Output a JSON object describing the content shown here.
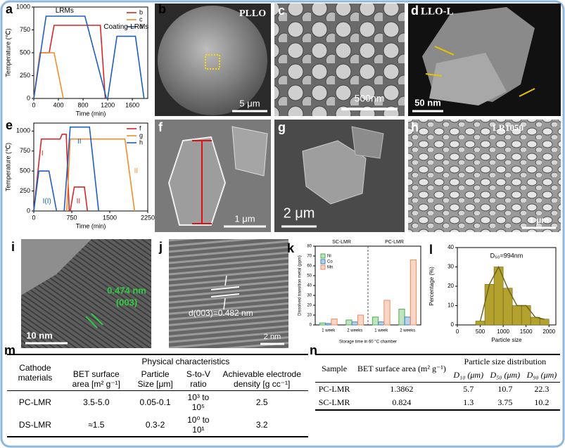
{
  "chart_data": [
    {
      "type": "line",
      "panel": "a",
      "xlabel": "Time (min)",
      "ylabel": "Temperature (℃)",
      "xlim": [
        0,
        1850
      ],
      "ylim": [
        0,
        1000
      ],
      "xticks": [
        0,
        400,
        800,
        1200,
        1600
      ],
      "yticks": [
        0,
        250,
        500,
        750,
        1000
      ],
      "series": [
        {
          "name": "b",
          "color": "#d62728",
          "x": [
            0,
            100,
            250,
            330,
            1080,
            1160
          ],
          "values": [
            0,
            500,
            500,
            800,
            800,
            0
          ]
        },
        {
          "name": "c",
          "color": "#f28e2b",
          "x": [
            0,
            100,
            330,
            480
          ],
          "values": [
            0,
            500,
            500,
            0
          ]
        },
        {
          "name": "d",
          "color": "#1f5fbf",
          "x": [
            0,
            200,
            830,
            1180,
            null,
            1200,
            1350,
            1650,
            1790
          ],
          "values": [
            0,
            900,
            900,
            0,
            null,
            0,
            680,
            680,
            0
          ]
        }
      ],
      "annotations": [
        {
          "text": "LRMs",
          "color": "#000000"
        },
        {
          "text": "Coating-LRMs",
          "color": "#000000"
        }
      ]
    },
    {
      "type": "line",
      "panel": "e",
      "xlabel": "Time (min)",
      "ylabel": "Temperature (℃)",
      "xlim": [
        0,
        2250
      ],
      "ylim": [
        0,
        1100
      ],
      "xticks": [
        0,
        750,
        1500,
        2250
      ],
      "yticks": [
        0,
        250,
        500,
        750,
        1000
      ],
      "series": [
        {
          "name": "f",
          "color": "#d62728",
          "x": [
            0,
            150,
            520,
            560,
            640,
            700,
            null,
            720,
            800,
            1000,
            1060
          ],
          "values": [
            0,
            900,
            900,
            960,
            960,
            0,
            null,
            0,
            300,
            300,
            0
          ]
        },
        {
          "name": "g",
          "color": "#f28e2b",
          "x": [
            650,
            720,
            1800,
            1990
          ],
          "values": [
            0,
            900,
            900,
            0
          ]
        },
        {
          "name": "h",
          "color": "#1f5fbf",
          "x": [
            0,
            100,
            300,
            450,
            null,
            600,
            720,
            1100,
            1280
          ],
          "values": [
            0,
            500,
            500,
            0,
            null,
            0,
            1050,
            1050,
            0
          ]
        }
      ],
      "annotations": [
        {
          "text": "I",
          "color": "#d62728"
        },
        {
          "text": "I(I)",
          "color": "#1f5fbf"
        },
        {
          "text": "II",
          "color": "#1f5fbf"
        },
        {
          "text": "II",
          "color": "#d62728"
        },
        {
          "text": "II",
          "color": "#f28e2b"
        }
      ]
    },
    {
      "type": "grouped-bar",
      "panel": "k",
      "xlabel": "Storage time in 60 °C chamber",
      "ylabel": "Dissolved transition metal (ppm)",
      "groups": [
        "SC-LMR",
        "PC-LMR"
      ],
      "categories": [
        "1 week",
        "2 weeks",
        "1 week",
        "2 weeks"
      ],
      "ylim": [
        0,
        80
      ],
      "yticks": [
        0,
        10,
        20,
        30,
        40,
        50,
        60,
        70,
        80
      ],
      "series": [
        {
          "name": "Ni",
          "color": "#4caf50",
          "values": [
            2,
            5,
            8,
            16
          ]
        },
        {
          "name": "Co",
          "color": "#3b82c4",
          "values": [
            1.5,
            3,
            3,
            8
          ]
        },
        {
          "name": "Mn",
          "color": "#f08a5d",
          "values": [
            6,
            10,
            25,
            66
          ]
        }
      ]
    },
    {
      "type": "histogram",
      "panel": "l",
      "xlabel": "Particle size",
      "ylabel": "Percentage (%)",
      "annotation": "D₅₀=994nm",
      "color": "#b3a22e",
      "bins": [
        400,
        600,
        800,
        1000,
        1200,
        1400,
        1600,
        1800,
        2000
      ],
      "values": [
        2,
        21,
        30,
        19,
        10,
        10,
        4,
        3
      ],
      "xlim": [
        0,
        2150
      ],
      "ylim": [
        0,
        40
      ],
      "xticks": [
        0,
        500,
        1000,
        1500,
        2000
      ],
      "yticks": [
        0,
        10,
        20,
        30,
        40
      ]
    }
  ],
  "images": [
    {
      "panel": "b",
      "labels": [
        "PLLO",
        "5 μm"
      ]
    },
    {
      "panel": "c",
      "labels": [
        "500nm"
      ]
    },
    {
      "panel": "d",
      "labels": [
        "LLO-L",
        "50 nm"
      ]
    },
    {
      "panel": "f",
      "labels": [
        "1 μm"
      ]
    },
    {
      "panel": "g",
      "labels": [
        "2 μm"
      ]
    },
    {
      "panel": "h",
      "labels": [
        "LR1050",
        "1 μm"
      ]
    },
    {
      "panel": "i",
      "labels": [
        "0.474 nm",
        "(003)",
        "10 nm"
      ]
    },
    {
      "panel": "j",
      "labels": [
        "d(003)=0.482 nm",
        "2 nm"
      ]
    }
  ],
  "tables": {
    "m": {
      "panel": "m",
      "title": "Physical characteristics",
      "header": [
        "Cathode materials",
        "BET surface area [m² g⁻¹]",
        "Particle Size [μm]",
        "S-to-V ratio",
        "Achievable electrode density [g cc⁻¹]"
      ],
      "rows": [
        [
          "PC-LMR",
          "3.5-5.0",
          "0.05-0.1",
          "10³ to 10⁵",
          "2.5"
        ],
        [
          "DS-LMR",
          "≈1.5",
          "0.3-2",
          "10⁰ to 10¹",
          "3.2"
        ]
      ]
    },
    "n": {
      "panel": "n",
      "title": "Particle size distribution",
      "header": [
        "Sample",
        "BET surface area (m² g⁻¹)",
        "D₁₀ (μm)",
        "D₅₀ (μm)",
        "D₉₀ (μm)"
      ],
      "rows": [
        [
          "PC-LMR",
          "1.3862",
          "5.7",
          "10.7",
          "22.3"
        ],
        [
          "SC-LMR",
          "0.824",
          "1.3",
          "3.75",
          "10.2"
        ]
      ]
    }
  }
}
